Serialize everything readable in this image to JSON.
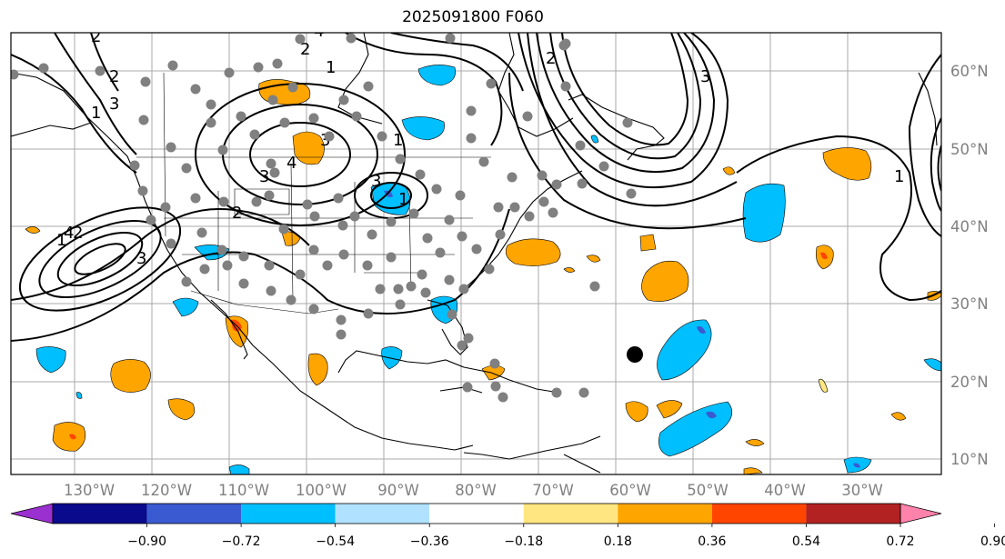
{
  "title": "2025091800 F060",
  "map": {
    "lon_labels": [
      "130°W",
      "120°W",
      "110°W",
      "100°W",
      "90°W",
      "80°W",
      "70°W",
      "60°W",
      "50°W",
      "40°W",
      "30°W"
    ],
    "lat_labels": [
      "60°N",
      "50°N",
      "40°N",
      "30°N",
      "20°N",
      "10°N"
    ],
    "label_color": "#808080",
    "contour_labels": [
      "4",
      "3",
      "2",
      "1",
      "3",
      "4",
      "3",
      "2",
      "1",
      "3",
      "2",
      "1",
      "1",
      "2",
      "1",
      "2",
      "4",
      "3",
      "3",
      "2",
      "1"
    ]
  },
  "colorbar": {
    "tick_labels": [
      "−0.90",
      "−0.72",
      "−0.54",
      "−0.36",
      "−0.18",
      "0.18",
      "0.36",
      "0.54",
      "0.72",
      "0.90"
    ],
    "colors": [
      "#9b30d0",
      "#0a0a8c",
      "#3a5ad2",
      "#00bfff",
      "#b0e2ff",
      "#ffffff",
      "#ffe680",
      "#ffa500",
      "#ff4500",
      "#b22222",
      "#ff82ab"
    ]
  }
}
